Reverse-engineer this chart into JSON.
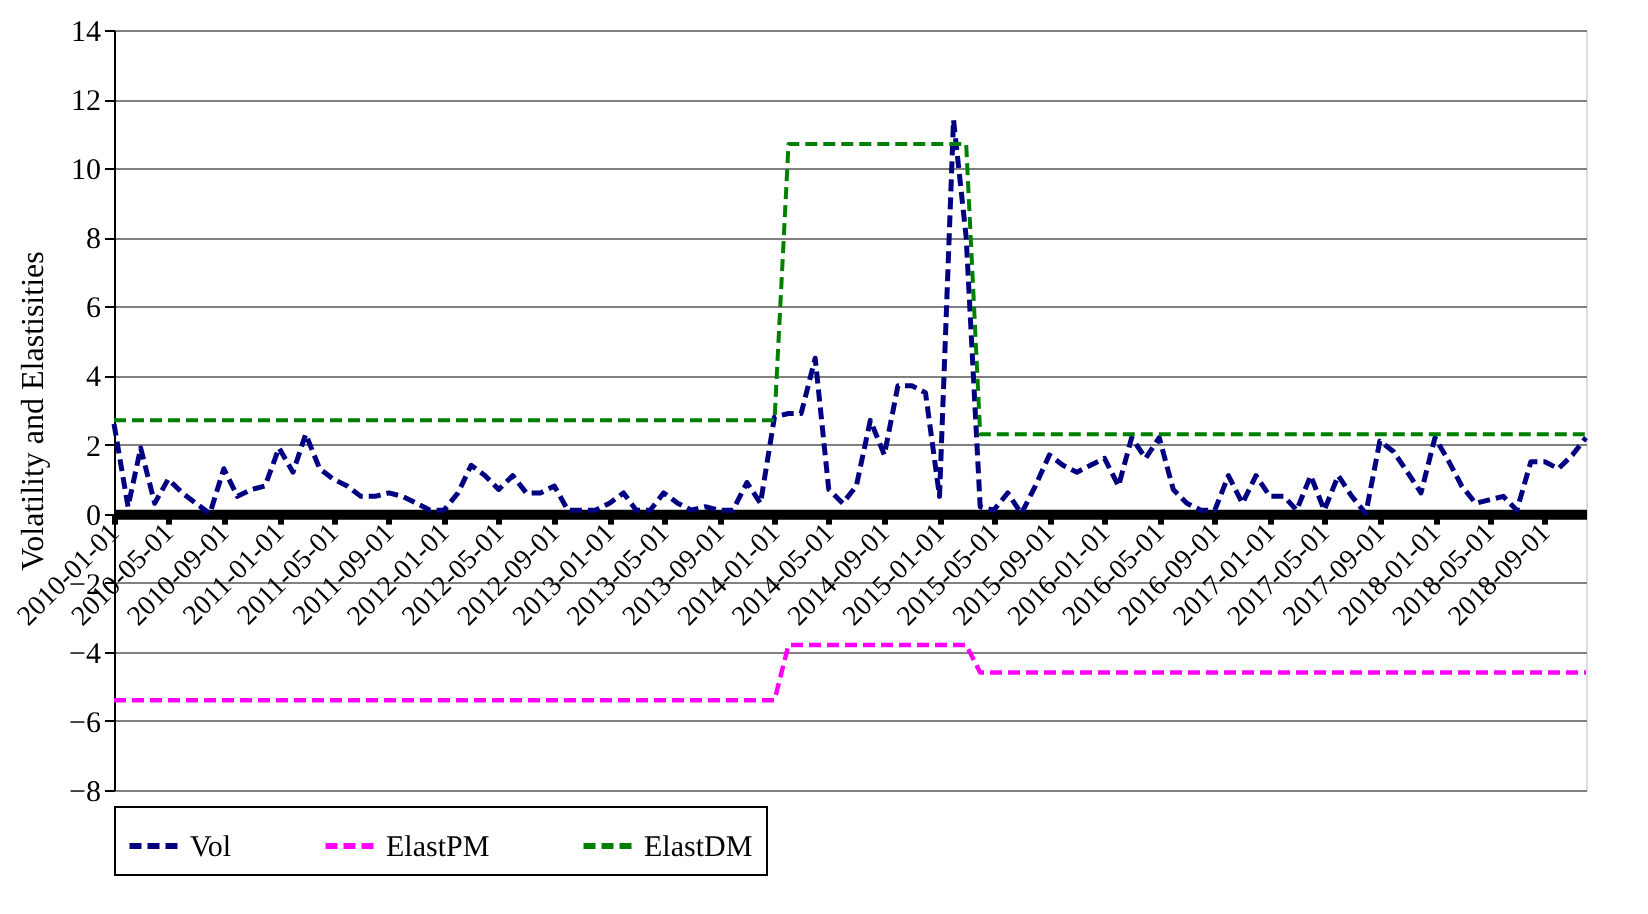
{
  "chart_data": {
    "type": "line",
    "ylabel": "Volatility and  Elastisities",
    "x": [
      "2010-01-01",
      "2010-02-01",
      "2010-03-01",
      "2010-04-01",
      "2010-05-01",
      "2010-06-01",
      "2010-07-01",
      "2010-08-01",
      "2010-09-01",
      "2010-10-01",
      "2010-11-01",
      "2010-12-01",
      "2011-01-01",
      "2011-02-01",
      "2011-03-01",
      "2011-04-01",
      "2011-05-01",
      "2011-06-01",
      "2011-07-01",
      "2011-08-01",
      "2011-09-01",
      "2011-10-01",
      "2011-11-01",
      "2011-12-01",
      "2012-01-01",
      "2012-02-01",
      "2012-03-01",
      "2012-04-01",
      "2012-05-01",
      "2012-06-01",
      "2012-07-01",
      "2012-08-01",
      "2012-09-01",
      "2012-10-01",
      "2012-11-01",
      "2012-12-01",
      "2013-01-01",
      "2013-02-01",
      "2013-03-01",
      "2013-04-01",
      "2013-05-01",
      "2013-06-01",
      "2013-07-01",
      "2013-08-01",
      "2013-09-01",
      "2013-10-01",
      "2013-11-01",
      "2013-12-01",
      "2014-01-01",
      "2014-02-01",
      "2014-03-01",
      "2014-04-01",
      "2014-05-01",
      "2014-06-01",
      "2014-07-01",
      "2014-08-01",
      "2014-09-01",
      "2014-10-01",
      "2014-11-01",
      "2014-12-01",
      "2015-01-01",
      "2015-02-01",
      "2015-03-01",
      "2015-04-01",
      "2015-05-01",
      "2015-06-01",
      "2015-07-01",
      "2015-08-01",
      "2015-09-01",
      "2015-10-01",
      "2015-11-01",
      "2015-12-01",
      "2016-01-01",
      "2016-02-01",
      "2016-03-01",
      "2016-04-01",
      "2016-05-01",
      "2016-06-01",
      "2016-07-01",
      "2016-08-01",
      "2016-09-01",
      "2016-10-01",
      "2016-11-01",
      "2016-12-01",
      "2017-01-01",
      "2017-02-01",
      "2017-03-01",
      "2017-04-01",
      "2017-05-01",
      "2017-06-01",
      "2017-07-01",
      "2017-08-01",
      "2017-09-01",
      "2017-10-01",
      "2017-11-01",
      "2017-12-01",
      "2018-01-01",
      "2018-02-01",
      "2018-03-01",
      "2018-04-01",
      "2018-05-01",
      "2018-06-01",
      "2018-07-01",
      "2018-08-01",
      "2018-09-01",
      "2018-10-01",
      "2018-11-01",
      "2018-12-01"
    ],
    "series": [
      {
        "name": "Vol",
        "color": "#000080",
        "values": [
          2.6,
          0.2,
          1.9,
          0.3,
          1.0,
          0.6,
          0.3,
          0.0,
          1.3,
          0.5,
          0.7,
          0.8,
          1.9,
          1.2,
          2.3,
          1.3,
          1.0,
          0.8,
          0.5,
          0.5,
          0.6,
          0.5,
          0.3,
          0.1,
          0.1,
          0.6,
          1.4,
          1.1,
          0.7,
          1.1,
          0.6,
          0.6,
          0.8,
          0.1,
          0.1,
          0.1,
          0.3,
          0.6,
          0.1,
          0.1,
          0.6,
          0.3,
          0.1,
          0.2,
          0.1,
          0.1,
          0.9,
          0.3,
          2.8,
          2.9,
          2.9,
          4.5,
          0.7,
          0.3,
          0.8,
          2.7,
          1.7,
          3.7,
          3.7,
          3.5,
          0.5,
          11.4,
          8.0,
          0.2,
          0.1,
          0.6,
          0.0,
          0.8,
          1.7,
          1.4,
          1.2,
          1.4,
          1.6,
          0.8,
          2.2,
          1.6,
          2.2,
          0.7,
          0.3,
          0.1,
          0.1,
          1.1,
          0.3,
          1.1,
          0.5,
          0.5,
          0.1,
          1.1,
          0.1,
          1.1,
          0.5,
          0.0,
          2.1,
          1.8,
          1.2,
          0.6,
          2.2,
          1.5,
          0.8,
          0.3,
          0.4,
          0.5,
          0.1,
          1.5,
          1.5,
          1.3,
          1.7,
          2.2
        ]
      },
      {
        "name": "ElastPM",
        "color": "#ff00ff",
        "values": [
          -5.4,
          -5.4,
          -5.4,
          -5.4,
          -5.4,
          -5.4,
          -5.4,
          -5.4,
          -5.4,
          -5.4,
          -5.4,
          -5.4,
          -5.4,
          -5.4,
          -5.4,
          -5.4,
          -5.4,
          -5.4,
          -5.4,
          -5.4,
          -5.4,
          -5.4,
          -5.4,
          -5.4,
          -5.4,
          -5.4,
          -5.4,
          -5.4,
          -5.4,
          -5.4,
          -5.4,
          -5.4,
          -5.4,
          -5.4,
          -5.4,
          -5.4,
          -5.4,
          -5.4,
          -5.4,
          -5.4,
          -5.4,
          -5.4,
          -5.4,
          -5.4,
          -5.4,
          -5.4,
          -5.4,
          -5.4,
          -5.4,
          -3.8,
          -3.8,
          -3.8,
          -3.8,
          -3.8,
          -3.8,
          -3.8,
          -3.8,
          -3.8,
          -3.8,
          -3.8,
          -3.8,
          -3.8,
          -3.8,
          -4.6,
          -4.6,
          -4.6,
          -4.6,
          -4.6,
          -4.6,
          -4.6,
          -4.6,
          -4.6,
          -4.6,
          -4.6,
          -4.6,
          -4.6,
          -4.6,
          -4.6,
          -4.6,
          -4.6,
          -4.6,
          -4.6,
          -4.6,
          -4.6,
          -4.6,
          -4.6,
          -4.6,
          -4.6,
          -4.6,
          -4.6,
          -4.6,
          -4.6,
          -4.6,
          -4.6,
          -4.6,
          -4.6,
          -4.6,
          -4.6,
          -4.6,
          -4.6,
          -4.6,
          -4.6,
          -4.6,
          -4.6,
          -4.6,
          -4.6,
          -4.6,
          -4.6
        ]
      },
      {
        "name": "ElastDM",
        "color": "#008000",
        "values": [
          2.7,
          2.7,
          2.7,
          2.7,
          2.7,
          2.7,
          2.7,
          2.7,
          2.7,
          2.7,
          2.7,
          2.7,
          2.7,
          2.7,
          2.7,
          2.7,
          2.7,
          2.7,
          2.7,
          2.7,
          2.7,
          2.7,
          2.7,
          2.7,
          2.7,
          2.7,
          2.7,
          2.7,
          2.7,
          2.7,
          2.7,
          2.7,
          2.7,
          2.7,
          2.7,
          2.7,
          2.7,
          2.7,
          2.7,
          2.7,
          2.7,
          2.7,
          2.7,
          2.7,
          2.7,
          2.7,
          2.7,
          2.7,
          2.7,
          10.7,
          10.7,
          10.7,
          10.7,
          10.7,
          10.7,
          10.7,
          10.7,
          10.7,
          10.7,
          10.7,
          10.7,
          10.7,
          10.7,
          2.3,
          2.3,
          2.3,
          2.3,
          2.3,
          2.3,
          2.3,
          2.3,
          2.3,
          2.3,
          2.3,
          2.3,
          2.3,
          2.3,
          2.3,
          2.3,
          2.3,
          2.3,
          2.3,
          2.3,
          2.3,
          2.3,
          2.3,
          2.3,
          2.3,
          2.3,
          2.3,
          2.3,
          2.3,
          2.3,
          2.3,
          2.3,
          2.3,
          2.3,
          2.3,
          2.3,
          2.3,
          2.3,
          2.3,
          2.3,
          2.3,
          2.3,
          2.3,
          2.3,
          2.3
        ]
      }
    ],
    "xlim": [
      "2010-01-01",
      "2018-12-01"
    ],
    "xticks": [
      "2010-01-01",
      "2010-05-01",
      "2010-09-01",
      "2011-01-01",
      "2011-05-01",
      "2011-09-01",
      "2012-01-01",
      "2012-05-01",
      "2012-09-01",
      "2013-01-01",
      "2013-05-01",
      "2013-09-01",
      "2014-01-01",
      "2014-05-01",
      "2014-09-01",
      "2015-01-01",
      "2015-05-01",
      "2015-09-01",
      "2016-01-01",
      "2016-05-01",
      "2016-09-01",
      "2017-01-01",
      "2017-05-01",
      "2017-09-01",
      "2018-01-01",
      "2018-05-01",
      "2018-09-01"
    ],
    "ylim": [
      -8,
      14
    ],
    "yticks": [
      -8,
      -6,
      -4,
      -2,
      0,
      2,
      4,
      6,
      8,
      10,
      12,
      14
    ],
    "grid": "y",
    "legend": "bottom",
    "line_style": "dashed",
    "marker": "none"
  }
}
